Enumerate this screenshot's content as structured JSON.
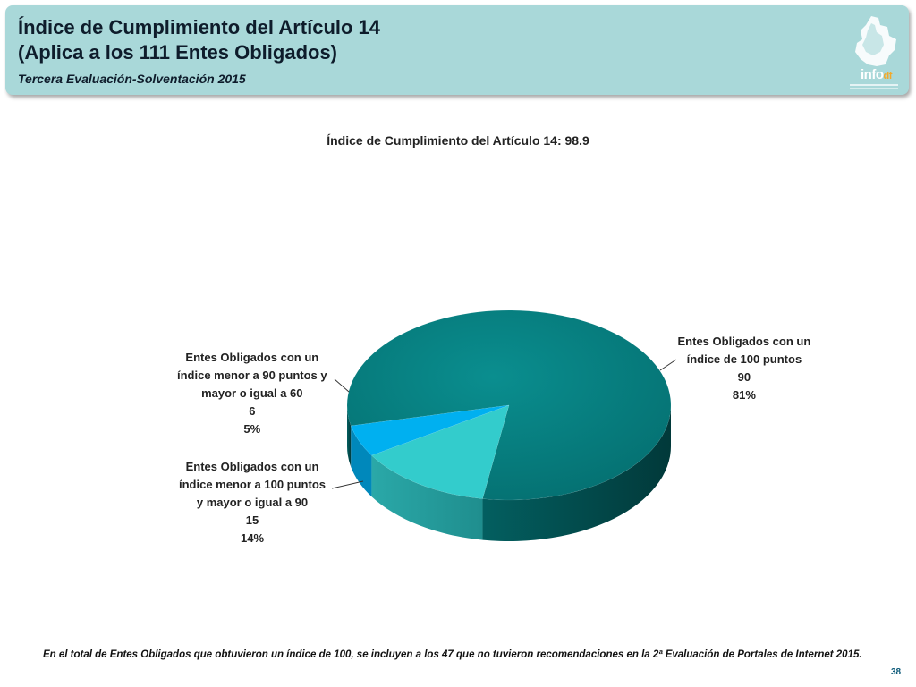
{
  "header": {
    "title_line1": "Índice de Cumplimiento del Artículo 14",
    "title_line2": "(Aplica a los 111 Entes Obligados)",
    "subtitle": "Tercera Evaluación-Solventación 2015",
    "logo_main": "info",
    "logo_suffix": "df"
  },
  "chart_data": {
    "type": "pie",
    "title": "Índice de Cumplimiento del Artículo 14: 98.9",
    "slices": [
      {
        "label_lines": [
          "Entes Obligados con un",
          "índice de 100 puntos"
        ],
        "value": 90,
        "percent": "81%",
        "color": "#047f80"
      },
      {
        "label_lines": [
          "Entes Obligados con un",
          "índice  menor a 100 puntos",
          "y mayor o igual a 90"
        ],
        "value": 15,
        "percent": "14%",
        "color": "#33cccc"
      },
      {
        "label_lines": [
          "Entes Obligados con un",
          "índice menor a 90 puntos y",
          "mayor o igual a 60"
        ],
        "value": 6,
        "percent": "5%",
        "color": "#00b0f0"
      }
    ],
    "legend": "none",
    "data_labels": "outside-with-leader-lines"
  },
  "footnote": "En el total de Entes Obligados que obtuvieron un índice de 100, se incluyen a los 47 que no tuvieron recomendaciones en la 2ª Evaluación de Portales de Internet 2015.",
  "page_number": "38"
}
